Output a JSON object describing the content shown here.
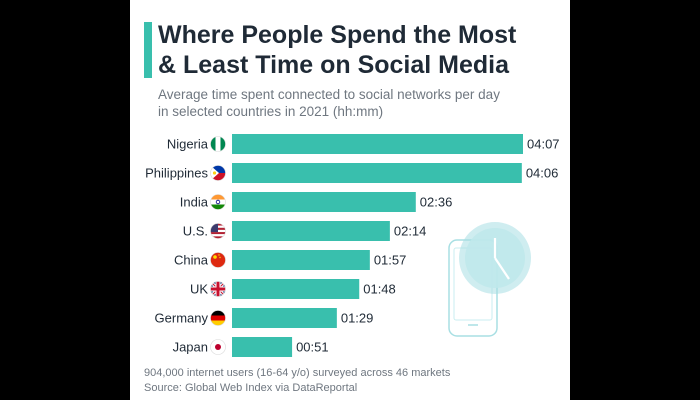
{
  "title_line1": "Where People Spend the Most",
  "title_line2": "& Least Time on Social Media",
  "subtitle_line1": "Average time spent connected to social networks per day",
  "subtitle_line2": "in selected countries in 2021 (hh:mm)",
  "note": "904,000 internet users (16-64 y/o) surveyed across 46 markets",
  "source": "Source: Global Web Index via DataReportal",
  "colors": {
    "bar": "#39bfad",
    "title": "#1f2a36",
    "muted": "#6f7780",
    "background": "#000000",
    "card": "#ffffff"
  },
  "chart_data": {
    "type": "bar",
    "orientation": "horizontal",
    "categories": [
      "Nigeria",
      "Philippines",
      "India",
      "U.S.",
      "China",
      "UK",
      "Germany",
      "Japan"
    ],
    "flags": [
      "nigeria-flag-icon",
      "philippines-flag-icon",
      "india-flag-icon",
      "us-flag-icon",
      "china-flag-icon",
      "uk-flag-icon",
      "germany-flag-icon",
      "japan-flag-icon"
    ],
    "values": [
      247,
      246,
      156,
      134,
      117,
      108,
      89,
      51
    ],
    "value_labels": [
      "04:07",
      "04:06",
      "02:36",
      "02:14",
      "01:57",
      "01:48",
      "01:29",
      "00:51"
    ],
    "unit": "minutes",
    "xlim": [
      0,
      247
    ],
    "grid": false,
    "legend": "none"
  }
}
